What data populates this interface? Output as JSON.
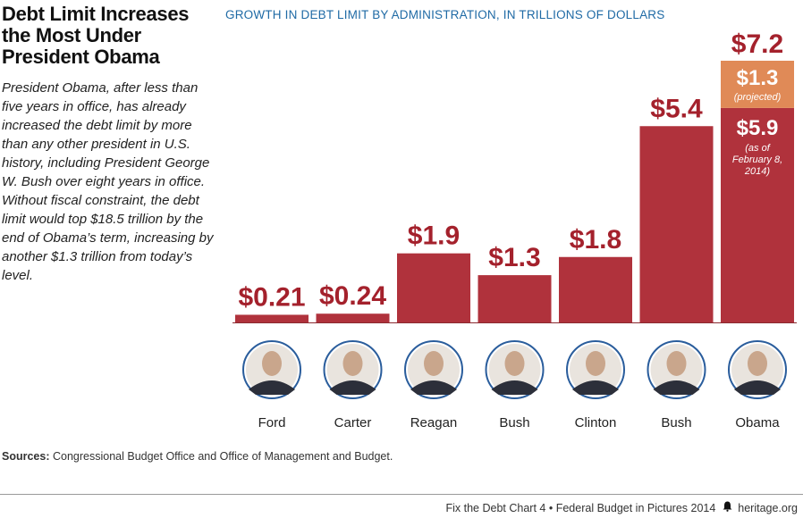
{
  "header": {
    "title_lines": [
      "Debt Limit Increases",
      "the Most Under",
      "President Obama"
    ],
    "description": "President Obama, after less than five years in office, has already increased the debt limit by more than any other president in U.S. history, including President George W. Bush over eight years in office. Without fiscal constraint, the debt limit would top $18.5 trillion by the end of Obama’s term, increasing by another $1.3 trillion from today’s level."
  },
  "chart_data": {
    "type": "bar",
    "title": "GROWTH IN DEBT LIMIT BY ADMINISTRATION, IN TRILLIONS OF DOLLARS",
    "categories": [
      "Ford",
      "Carter",
      "Reagan",
      "Bush",
      "Clinton",
      "Bush",
      "Obama"
    ],
    "values": [
      0.21,
      0.24,
      1.9,
      1.3,
      1.8,
      5.4,
      7.2
    ],
    "value_labels": [
      "$0.21",
      "$0.24",
      "$1.9",
      "$1.3",
      "$1.8",
      "$5.4",
      "$7.2"
    ],
    "obama_segments": [
      {
        "value": 5.9,
        "label": "$5.9",
        "note": "(as of February 8, 2014)",
        "note_lines": [
          "(as of",
          "February 8,",
          "2014)"
        ],
        "color": "#b0323c"
      },
      {
        "value": 1.3,
        "label": "$1.3",
        "note": "(projected)",
        "note_lines": [
          "(projected)"
        ],
        "color": "#e08a57"
      }
    ],
    "ylim": [
      0,
      7.2
    ],
    "xlabel": "",
    "ylabel": "",
    "grid": false,
    "legend": "none"
  },
  "colors": {
    "bar": "#b0323c",
    "projected": "#e08a57",
    "value_label": "#a4212c",
    "title_blue": "#1f6aa5",
    "portrait_ring": "#2a5d9c"
  },
  "portrait_icon": "president-portrait-icon",
  "sources": {
    "label": "Sources:",
    "text": "Congressional Budget Office and Office of Management and Budget."
  },
  "footer": {
    "chart_name": "Fix the Debt Chart 4",
    "separator": "•",
    "publication": "Federal Budget in Pictures 2014",
    "site": "heritage.org"
  }
}
